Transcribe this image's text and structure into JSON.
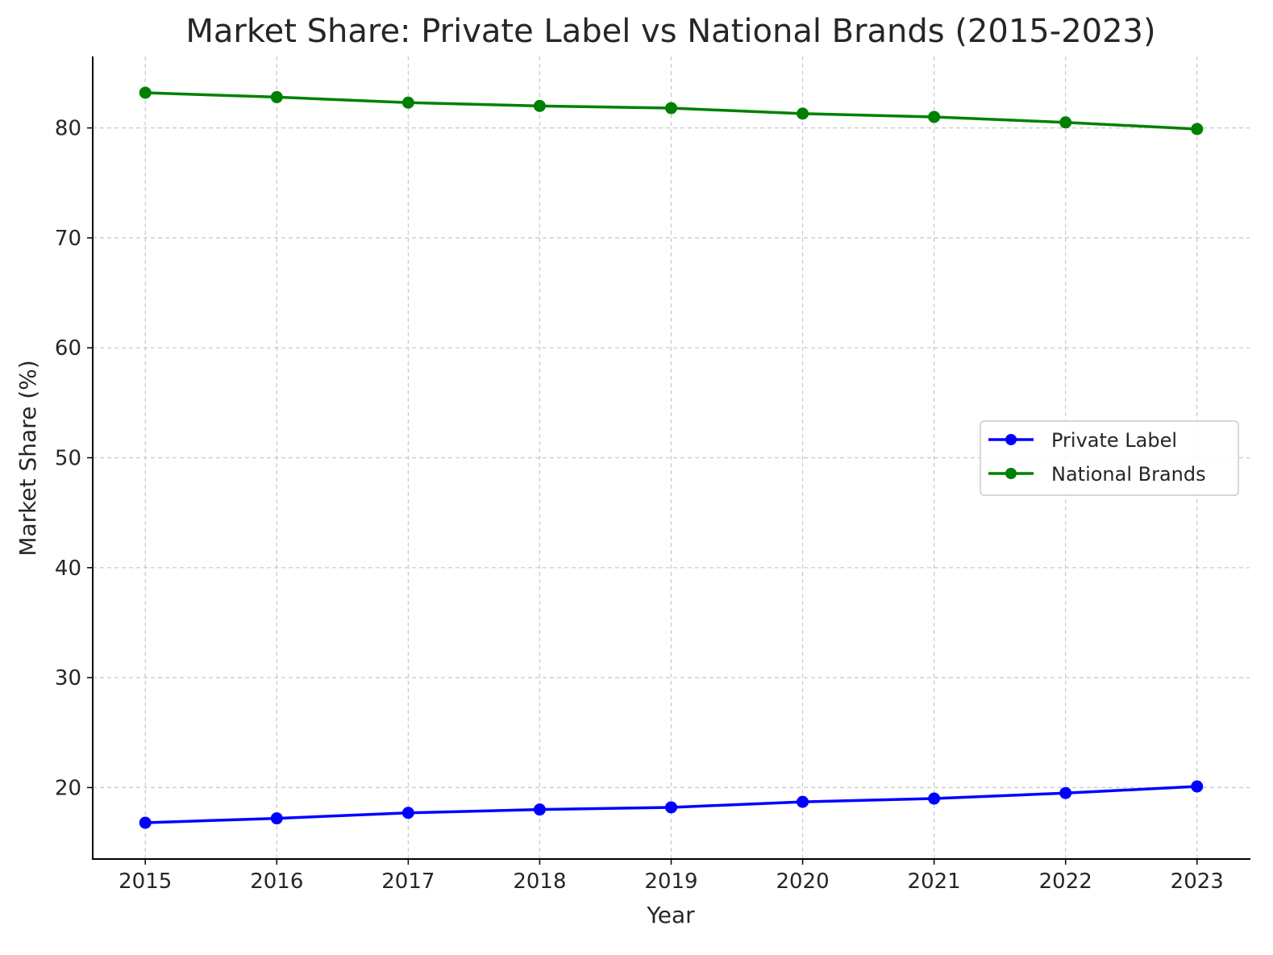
{
  "chart_data": {
    "type": "line",
    "title": "Market Share: Private Label vs National Brands (2015-2023)",
    "xlabel": "Year",
    "ylabel": "Market Share (%)",
    "x": [
      2015,
      2016,
      2017,
      2018,
      2019,
      2020,
      2021,
      2022,
      2023
    ],
    "xticks": [
      "2015",
      "2016",
      "2017",
      "2018",
      "2019",
      "2020",
      "2021",
      "2022",
      "2023"
    ],
    "yticks": [
      20,
      30,
      40,
      50,
      60,
      70,
      80
    ],
    "xlim": [
      2014.6,
      2023.4
    ],
    "ylim": [
      13.5,
      86.5
    ],
    "grid": true,
    "legend_position": "center-right",
    "series": [
      {
        "name": "Private Label",
        "color": "#0000ff",
        "marker": "circle",
        "values": [
          16.8,
          17.2,
          17.7,
          18.0,
          18.2,
          18.7,
          19.0,
          19.5,
          20.1
        ]
      },
      {
        "name": "National Brands",
        "color": "#008000",
        "marker": "circle",
        "values": [
          83.2,
          82.8,
          82.3,
          82.0,
          81.8,
          81.3,
          81.0,
          80.5,
          79.9
        ]
      }
    ]
  }
}
